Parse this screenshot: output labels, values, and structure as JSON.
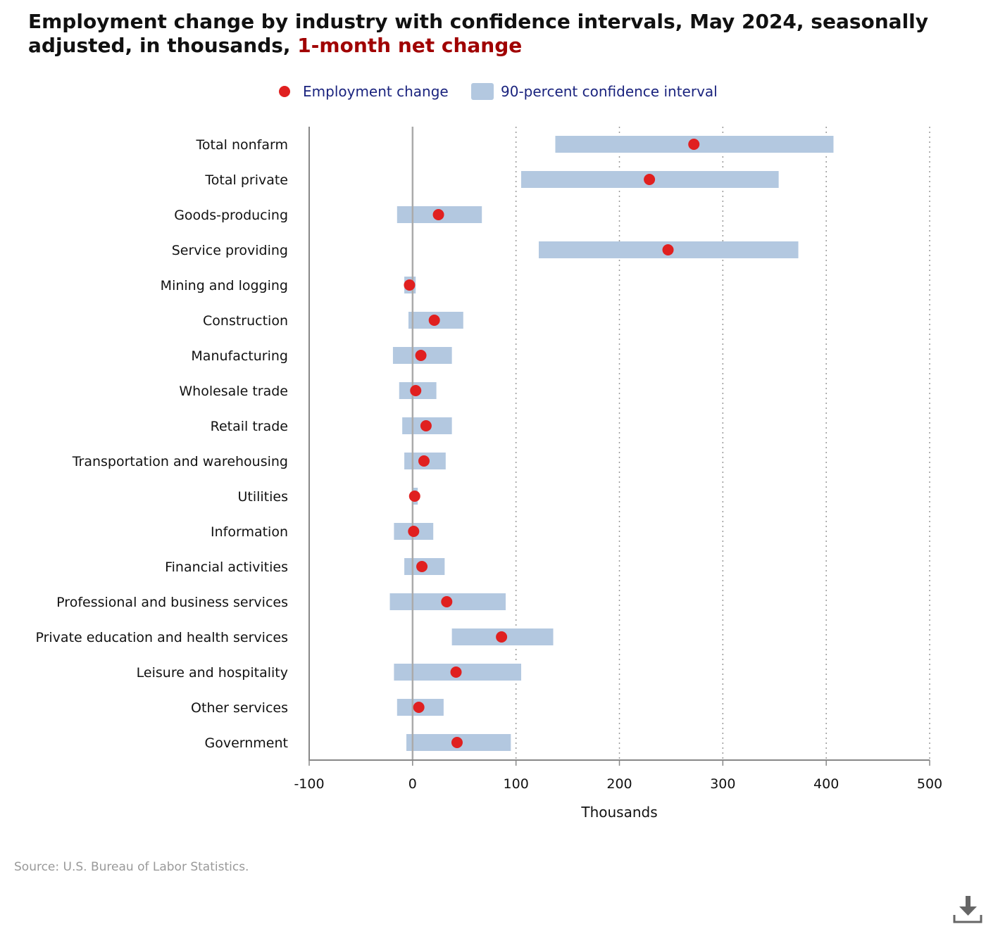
{
  "title": {
    "main": "Employment change by industry with confidence intervals, May 2024, seasonally adjusted, in thousands, ",
    "highlight": "1-month net change",
    "highlight_color": "#a00000"
  },
  "legend": {
    "point_label": "Employment change",
    "interval_label": "90-percent confidence interval"
  },
  "colors": {
    "point": "#e02020",
    "interval": "#b3c8e0",
    "legend_text": "#1a237e",
    "axis": "#888888",
    "zero_line": "#aaaaaa"
  },
  "chart_data": {
    "type": "dot-interval",
    "xlabel": "Thousands",
    "xlim": [
      -100,
      500
    ],
    "xticks": [
      -100,
      0,
      100,
      200,
      300,
      400,
      500
    ],
    "grid": "vertical dotted",
    "legend_position": "top",
    "categories": [
      "Total nonfarm",
      "Total private",
      "Goods-producing",
      "Service providing",
      "Mining and logging",
      "Construction",
      "Manufacturing",
      "Wholesale trade",
      "Retail trade",
      "Transportation and warehousing",
      "Utilities",
      "Information",
      "Financial activities",
      "Professional and business services",
      "Private education and health services",
      "Leisure and hospitality",
      "Other services",
      "Government"
    ],
    "values": [
      272,
      229,
      25,
      247,
      -3,
      21,
      8,
      3,
      13,
      11,
      2,
      1,
      9,
      33,
      86,
      42,
      6,
      43
    ],
    "ci_low": [
      138,
      105,
      -15,
      122,
      -8,
      -4,
      -19,
      -13,
      -10,
      -8,
      0,
      -18,
      -8,
      -22,
      38,
      -18,
      -15,
      -6
    ],
    "ci_high": [
      407,
      354,
      67,
      373,
      3,
      49,
      38,
      23,
      38,
      32,
      5,
      20,
      31,
      90,
      136,
      105,
      30,
      95
    ]
  },
  "source": "Source: U.S. Bureau of Labor Statistics.",
  "download_icon": "download-icon"
}
